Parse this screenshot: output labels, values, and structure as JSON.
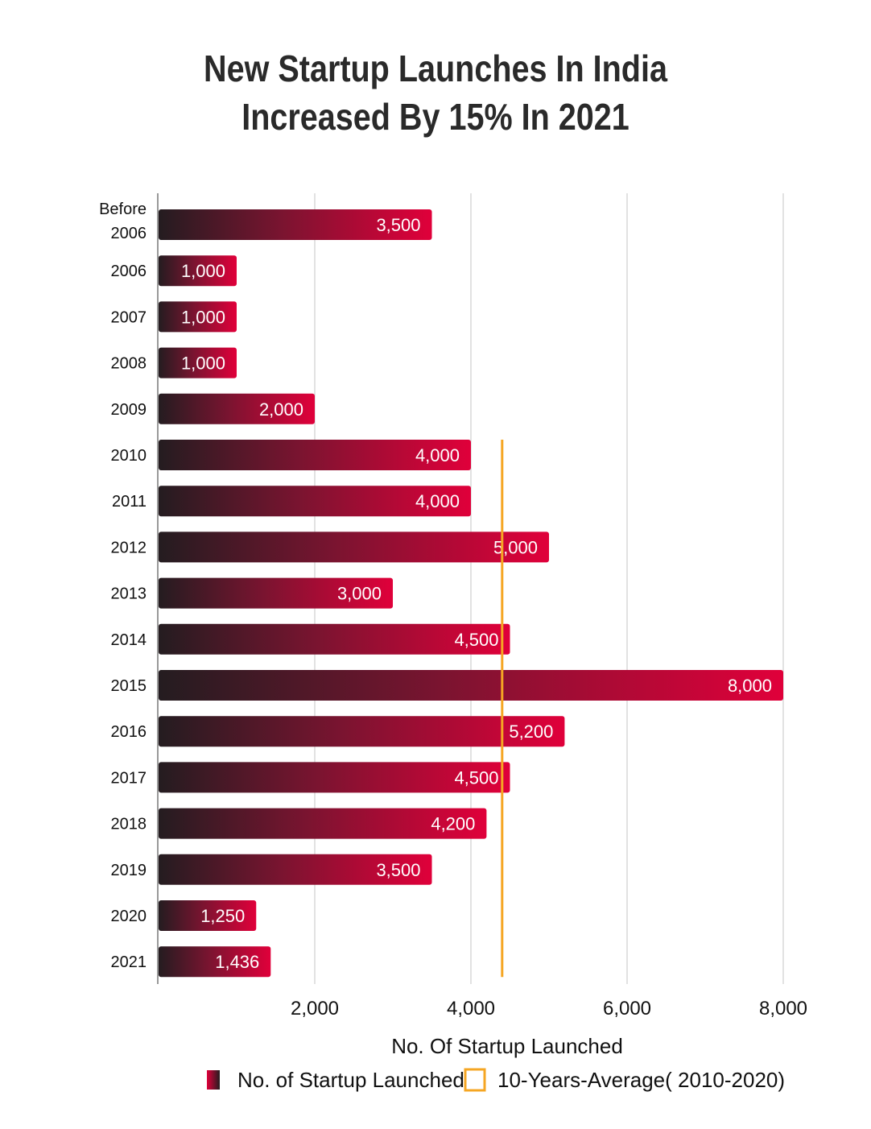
{
  "chart_data": {
    "type": "bar",
    "orientation": "horizontal",
    "title_lines": [
      "New Startup Launches In India",
      "Increased By 15% In 2021"
    ],
    "categories": [
      "Before 2006",
      "2006",
      "2007",
      "2008",
      "2009",
      "2010",
      "2011",
      "2012",
      "2013",
      "2014",
      "2015",
      "2016",
      "2017",
      "2018",
      "2019",
      "2020",
      "2021"
    ],
    "series": [
      {
        "name": "No. of Startup Launched",
        "values": [
          3500,
          1000,
          1000,
          1000,
          2000,
          4000,
          4000,
          5000,
          3000,
          4500,
          8000,
          5200,
          4500,
          4200,
          3500,
          1250,
          1436
        ],
        "labels": [
          "3,500",
          "1,000",
          "1,000",
          "1,000",
          "2,000",
          "4,000",
          "4,000",
          "5,000",
          "3,000",
          "4,500",
          "8,000",
          "5,200",
          "4,500",
          "4,200",
          "3,500",
          "1,250",
          "1,436"
        ]
      }
    ],
    "reference_line": {
      "name": "10-Years-Average( 2010-2020)",
      "value": 4400,
      "from_category": "2010",
      "to_category": "2021"
    },
    "xlabel": "No. Of Startup Launched",
    "ylabel": "",
    "xlim": [
      0,
      8000
    ],
    "xticks": [
      2000,
      4000,
      6000,
      8000
    ],
    "xtick_labels": [
      "2,000",
      "4,000",
      "6,000",
      "8,000"
    ],
    "grid": true,
    "legend_position": "bottom",
    "colors": {
      "bar_start": "#241c20",
      "bar_end": "#e0003a",
      "reference": "#f5a623",
      "grid": "#d9d9d9",
      "axis": "#999999"
    }
  }
}
